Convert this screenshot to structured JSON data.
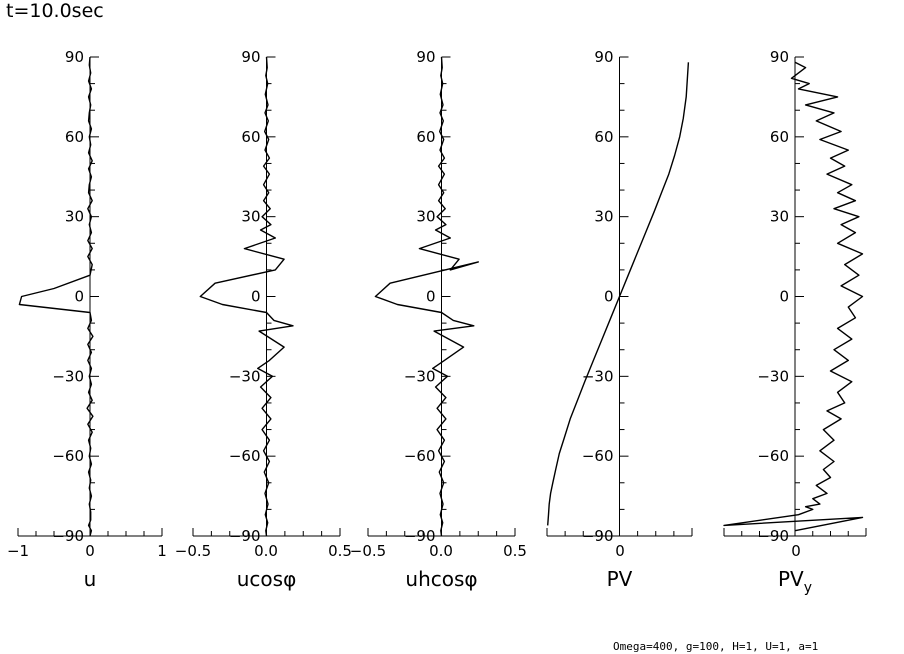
{
  "title": "t=10.0sec",
  "footer": "Omega=400, g=100, H=1, U=1, a=1",
  "chart_data": [
    {
      "type": "line",
      "xlabel": "u",
      "xlim": [
        -1,
        1
      ],
      "xticks": [
        "−1",
        "0",
        "1"
      ],
      "ylim": [
        -90,
        90
      ],
      "yticks": [
        "−90",
        "−60",
        "−30",
        "0",
        "30",
        "60",
        "90"
      ],
      "series": [
        {
          "x": [
            0,
            -0.01,
            0.01,
            -0.02,
            0.02,
            -0.02,
            0.01,
            -0.01,
            -0.02,
            0.02,
            -0.01,
            0.01,
            -0.02,
            0.03,
            -0.02,
            0.02,
            -0.01,
            -0.02,
            0.03,
            -0.03,
            0.02,
            -0.01,
            0.02,
            -0.03,
            0.03,
            -0.03,
            0.03,
            0,
            -0.5,
            -0.95,
            -0.98,
            0,
            0.02,
            -0.03,
            0.04,
            -0.03,
            0.02,
            -0.03,
            0.02,
            -0.01,
            0.02,
            -0.02,
            0.03,
            -0.04,
            0.04,
            -0.03,
            0.03,
            -0.02,
            0.01,
            -0.01,
            0.02,
            -0.02,
            0.01,
            -0.01,
            0.02,
            -0.01,
            0.01,
            0.01,
            -0.02,
            0.02,
            0
          ],
          "y": [
            90,
            87,
            84,
            81,
            78,
            75,
            72,
            69,
            66,
            63,
            60,
            57,
            54,
            51,
            48,
            45,
            42,
            39,
            36,
            33,
            30,
            27,
            24,
            21,
            18,
            15,
            12,
            8,
            3,
            0,
            -3,
            -6,
            -9,
            -12,
            -15,
            -18,
            -21,
            -24,
            -27,
            -30,
            -33,
            -36,
            -39,
            -42,
            -45,
            -48,
            -51,
            -54,
            -57,
            -60,
            -63,
            -66,
            -69,
            -72,
            -75,
            -78,
            -81,
            -84,
            -86,
            -88,
            -90
          ]
        }
      ]
    },
    {
      "type": "line",
      "xlabel": "ucosφ",
      "xlim": [
        -0.5,
        0.5
      ],
      "xticks": [
        "−0.5",
        "0.0",
        "0.5"
      ],
      "ylim": [
        -90,
        90
      ],
      "yticks": [
        "−90",
        "−60",
        "−30",
        "0",
        "30",
        "60",
        "90"
      ],
      "series": [
        {
          "x": [
            0,
            0.005,
            -0.005,
            0.008,
            -0.008,
            0.01,
            -0.01,
            0.012,
            -0.012,
            0.015,
            -0.01,
            0.02,
            -0.02,
            0.02,
            -0.02,
            0.015,
            -0.02,
            0.025,
            -0.03,
            0.03,
            -0.04,
            0.06,
            -0.15,
            0.12,
            0.06,
            -0.35,
            -0.45,
            -0.3,
            0,
            0.05,
            0.18,
            -0.05,
            0.12,
            0.02,
            -0.06,
            0.04,
            -0.04,
            0.03,
            -0.03,
            0.03,
            -0.03,
            0.02,
            -0.02,
            0.02,
            -0.015,
            0.015,
            -0.01,
            0.01,
            -0.008,
            0.008,
            -0.005,
            0
          ],
          "y": [
            90,
            86,
            83,
            80,
            76,
            72,
            69,
            66,
            62,
            59,
            55,
            52,
            49,
            46,
            42,
            39,
            36,
            33,
            30,
            27,
            25,
            22,
            18,
            14,
            10,
            5,
            0,
            -3,
            -6,
            -9,
            -11,
            -13,
            -19,
            -24,
            -27,
            -30,
            -34,
            -38,
            -42,
            -46,
            -50,
            -54,
            -58,
            -62,
            -66,
            -70,
            -74,
            -78,
            -82,
            -85,
            -88,
            -90
          ]
        }
      ]
    },
    {
      "type": "line",
      "xlabel": "uhcosφ",
      "xlim": [
        -0.5,
        0.5
      ],
      "xticks": [
        "−0.5",
        "0.0",
        "0.5"
      ],
      "ylim": [
        -90,
        90
      ],
      "yticks": [
        "−90",
        "−60",
        "−30",
        "0",
        "30",
        "60",
        "90"
      ],
      "series": [
        {
          "x": [
            0,
            0.005,
            -0.005,
            0.008,
            -0.008,
            0.01,
            -0.01,
            0.012,
            -0.012,
            0.015,
            -0.01,
            0.02,
            -0.02,
            0.02,
            -0.02,
            0.015,
            -0.02,
            0.025,
            -0.03,
            0.03,
            -0.04,
            0.06,
            -0.15,
            0.12,
            0.06,
            0.25,
            -0.35,
            -0.45,
            -0.3,
            0,
            0.08,
            0.22,
            -0.05,
            0.15,
            0.02,
            -0.06,
            0.04,
            -0.04,
            0.03,
            -0.03,
            0.03,
            -0.03,
            0.02,
            -0.02,
            0.02,
            -0.015,
            0.015,
            -0.01,
            0.01,
            -0.008,
            0.008,
            -0.005,
            0
          ],
          "y": [
            90,
            86,
            83,
            80,
            76,
            72,
            69,
            66,
            62,
            59,
            55,
            52,
            49,
            46,
            42,
            39,
            36,
            33,
            30,
            27,
            25,
            22,
            18,
            14,
            10,
            13,
            5,
            0,
            -3,
            -6,
            -9,
            -11,
            -13,
            -19,
            -24,
            -27,
            -30,
            -34,
            -38,
            -42,
            -46,
            -50,
            -54,
            -58,
            -62,
            -66,
            -70,
            -74,
            -78,
            -82,
            -85,
            -88,
            -90
          ]
        }
      ]
    },
    {
      "type": "line",
      "xlabel": "PV",
      "xlim": [
        -1,
        1
      ],
      "xticks": [
        "0"
      ],
      "ylim": [
        -90,
        90
      ],
      "yticks": [
        "−90",
        "−60",
        "−30",
        "0",
        "30",
        "60",
        "90"
      ],
      "series": [
        {
          "x": [
            -0.99,
            -0.98,
            -0.97,
            -0.95,
            -0.92,
            -0.88,
            -0.83,
            -0.76,
            -0.68,
            -0.58,
            -0.48,
            -0.36,
            -0.24,
            -0.12,
            0,
            0.12,
            0.24,
            0.36,
            0.48,
            0.58,
            0.68,
            0.76,
            0.83,
            0.88,
            0.92,
            0.95
          ],
          "y": [
            -86,
            -82,
            -78,
            -74,
            -70,
            -65,
            -59,
            -53,
            -46,
            -39,
            -32,
            -24,
            -16,
            -8,
            0,
            8,
            16,
            24,
            32,
            39,
            46,
            53,
            60,
            67,
            75,
            88
          ]
        }
      ]
    },
    {
      "type": "line",
      "xlabel": "PV",
      "xlabel_sub": "y",
      "xlim": [
        -2,
        2
      ],
      "xticks": [
        "0"
      ],
      "ylim": [
        -90,
        90
      ],
      "yticks": [
        "−90",
        "−60",
        "−30",
        "0",
        "30",
        "60",
        "90"
      ],
      "series": [
        {
          "x": [
            0,
            0.3,
            -0.1,
            0.4,
            0.1,
            1.2,
            0.3,
            1.1,
            0.6,
            1.3,
            0.7,
            1.5,
            1.0,
            1.4,
            0.9,
            1.6,
            1.2,
            1.7,
            1.1,
            1.8,
            1.3,
            1.7,
            1.2,
            1.9,
            1.4,
            1.8,
            1.3,
            1.9,
            1.5,
            1.7,
            1.2,
            1.6,
            1.1,
            1.5,
            1.0,
            1.6,
            1.2,
            1.4,
            0.9,
            1.3,
            0.8,
            1.1,
            0.7,
            1.1,
            0.8,
            1.0,
            0.6,
            0.9,
            0.5,
            0.7,
            0.3,
            0.5,
            0.1,
            -2,
            1.9,
            0
          ],
          "y": [
            88,
            86,
            82,
            80,
            78,
            75,
            72,
            69,
            66,
            62,
            59,
            55,
            52,
            49,
            46,
            42,
            39,
            36,
            33,
            30,
            27,
            24,
            20,
            16,
            12,
            8,
            4,
            0,
            -4,
            -8,
            -12,
            -16,
            -20,
            -24,
            -28,
            -32,
            -36,
            -40,
            -43,
            -46,
            -50,
            -54,
            -58,
            -62,
            -65,
            -68,
            -71,
            -74,
            -76,
            -78,
            -79,
            -80,
            -82,
            -86,
            -83,
            -88
          ]
        }
      ]
    }
  ]
}
